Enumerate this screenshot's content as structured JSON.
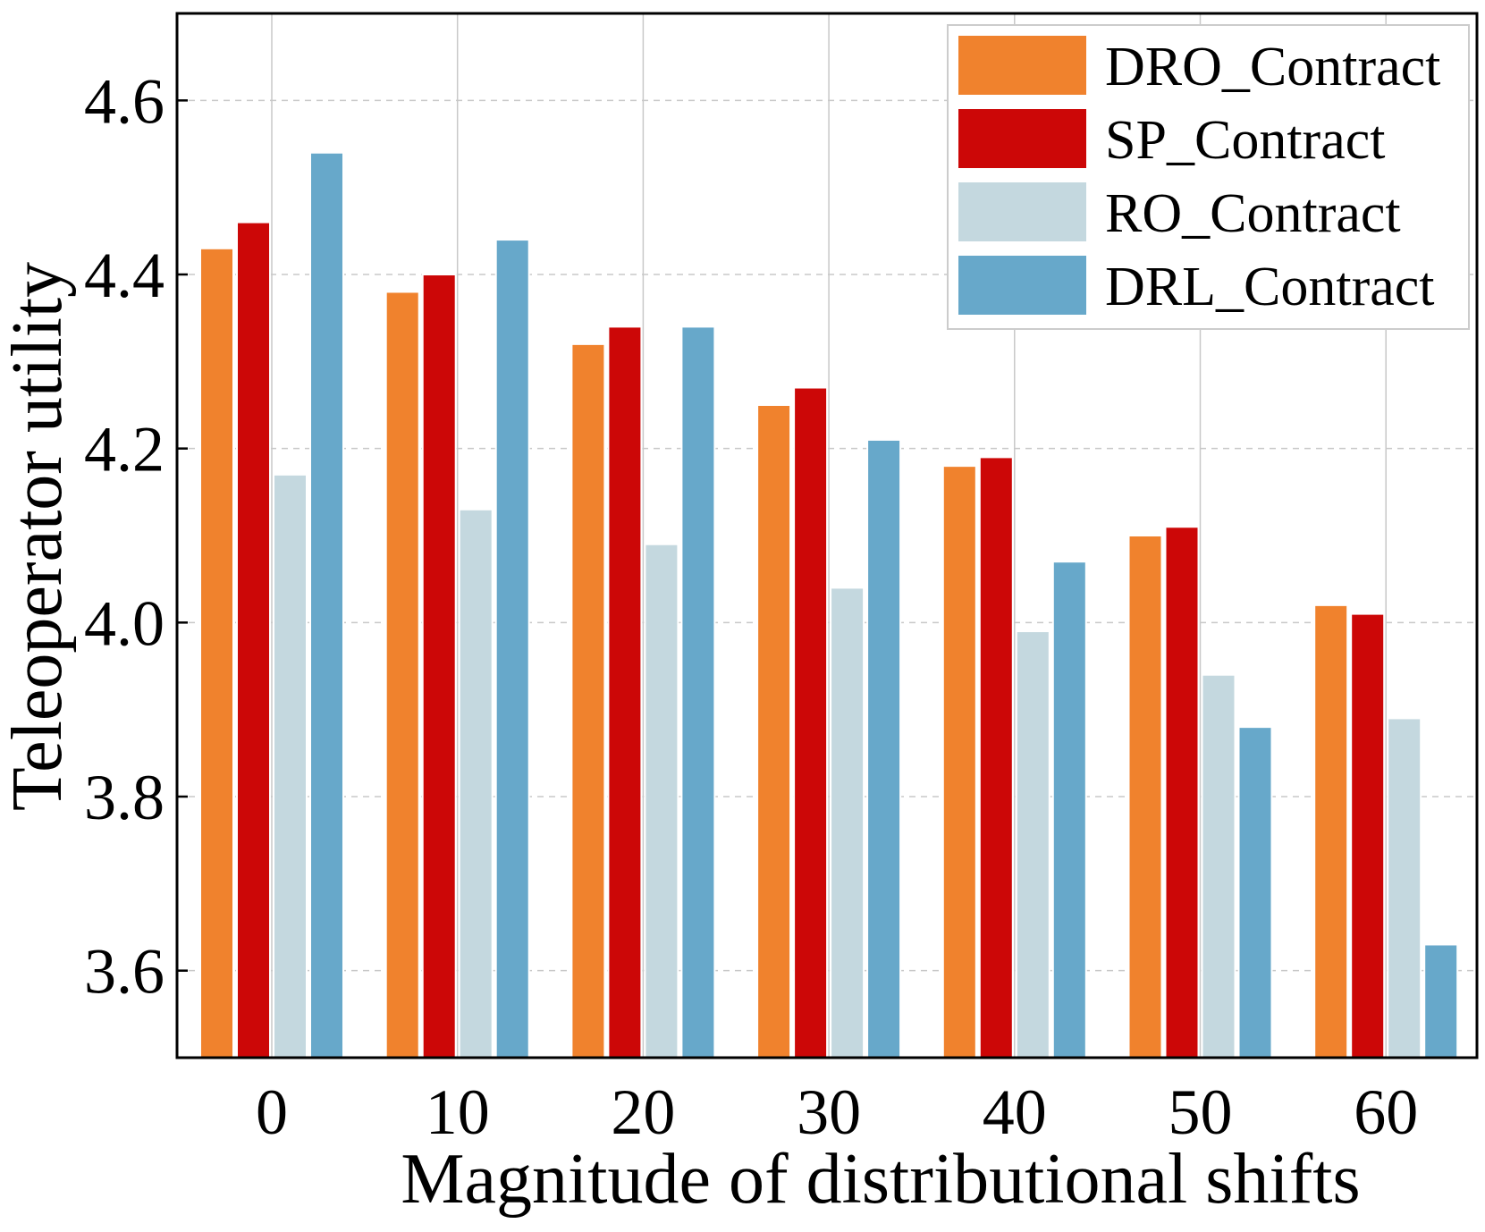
{
  "chart_data": {
    "type": "bar",
    "title": "",
    "xlabel": "Magnitude of distributional shifts",
    "ylabel": "Teleoperator utility",
    "categories": [
      "0",
      "10",
      "20",
      "30",
      "40",
      "50",
      "60"
    ],
    "series": [
      {
        "name": "DRO_Contract",
        "color": "#F0822D",
        "values": [
          4.43,
          4.38,
          4.32,
          4.25,
          4.18,
          4.1,
          4.02
        ]
      },
      {
        "name": "SP_Contract",
        "color": "#CC0707",
        "values": [
          4.46,
          4.4,
          4.34,
          4.27,
          4.19,
          4.11,
          4.01
        ]
      },
      {
        "name": "RO_Contract",
        "color": "#C4D8DF",
        "values": [
          4.17,
          4.13,
          4.09,
          4.04,
          3.99,
          3.94,
          3.89
        ]
      },
      {
        "name": "DRL_Contract",
        "color": "#67A8CA",
        "values": [
          4.54,
          4.44,
          4.34,
          4.21,
          4.07,
          3.88,
          3.63
        ]
      }
    ],
    "ylim": [
      3.5,
      4.7
    ],
    "yticks": [
      "3.6",
      "3.8",
      "4.0",
      "4.2",
      "4.4",
      "4.6"
    ],
    "grid": true,
    "legend_position": "top-right"
  }
}
